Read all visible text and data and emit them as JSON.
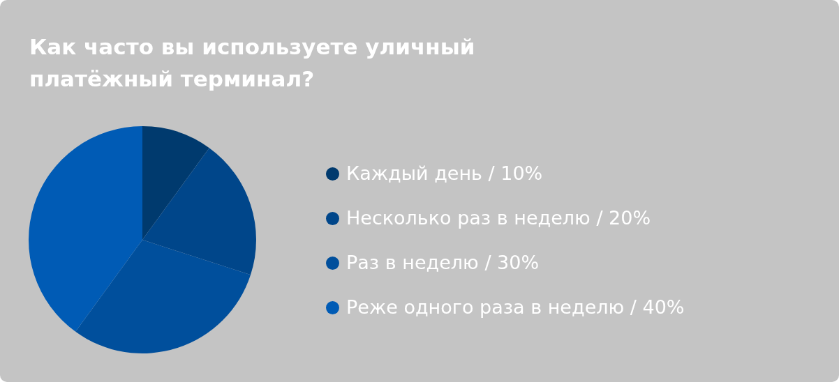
{
  "chart_data": {
    "type": "pie",
    "title": "Как часто вы используете уличный платёжный терминал?",
    "categories": [
      "Каждый день",
      "Несколько раз в неделю",
      "Раз в неделю",
      "Реже одного раза в неделю"
    ],
    "values": [
      10,
      20,
      30,
      40
    ],
    "value_labels": [
      "/ 10%",
      "/ 20%",
      "/ 30%",
      "/ 40%"
    ],
    "colors": [
      "#003a6e",
      "#00468a",
      "#004f9c",
      "#005bb5"
    ],
    "legend": "right"
  }
}
